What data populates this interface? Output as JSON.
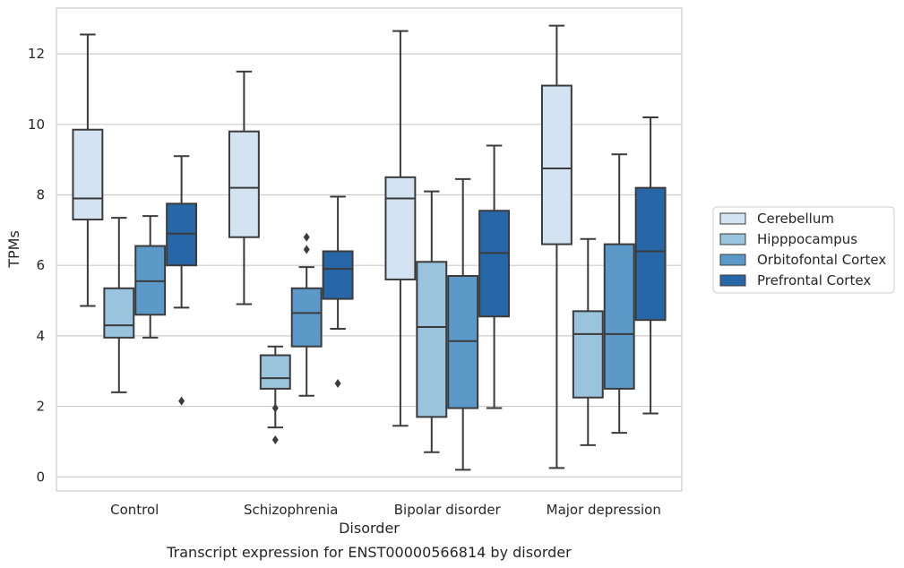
{
  "chart_data": {
    "type": "box",
    "title": "",
    "caption": "Transcript expression for ENST00000566814 by disorder",
    "xlabel": "Disorder",
    "ylabel": "TPMs",
    "ylim": [
      -0.4,
      13.3
    ],
    "yticks": [
      0,
      2,
      4,
      6,
      8,
      10,
      12
    ],
    "grid": "horizontal",
    "legend_position": "right",
    "categories": [
      "Control",
      "Schizophrenia",
      "Bipolar disorder",
      "Major depression"
    ],
    "series": [
      {
        "name": "Cerebellum",
        "color": "#d3e3f2",
        "boxes": [
          {
            "min": 4.85,
            "q1": 7.3,
            "median": 7.9,
            "q3": 9.85,
            "max": 12.55,
            "outliers": []
          },
          {
            "min": 4.9,
            "q1": 6.8,
            "median": 8.2,
            "q3": 9.8,
            "max": 11.5,
            "outliers": []
          },
          {
            "min": 1.45,
            "q1": 5.6,
            "median": 7.9,
            "q3": 8.5,
            "max": 12.65,
            "outliers": []
          },
          {
            "min": 0.25,
            "q1": 6.6,
            "median": 8.75,
            "q3": 11.1,
            "max": 12.8,
            "outliers": []
          }
        ]
      },
      {
        "name": "Hipppocampus",
        "color": "#9ac3de",
        "boxes": [
          {
            "min": 2.4,
            "q1": 3.95,
            "median": 4.3,
            "q3": 5.35,
            "max": 7.35,
            "outliers": []
          },
          {
            "min": 1.4,
            "q1": 2.5,
            "median": 2.8,
            "q3": 3.45,
            "max": 3.7,
            "outliers": [
              1.95,
              1.05
            ]
          },
          {
            "min": 0.7,
            "q1": 1.7,
            "median": 4.25,
            "q3": 6.1,
            "max": 8.1,
            "outliers": []
          },
          {
            "min": 0.9,
            "q1": 2.25,
            "median": 4.05,
            "q3": 4.7,
            "max": 6.75,
            "outliers": []
          }
        ]
      },
      {
        "name": "Orbitofontal Cortex",
        "color": "#5b9ac8",
        "boxes": [
          {
            "min": 3.95,
            "q1": 4.6,
            "median": 5.55,
            "q3": 6.55,
            "max": 7.4,
            "outliers": []
          },
          {
            "min": 2.3,
            "q1": 3.7,
            "median": 4.65,
            "q3": 5.35,
            "max": 5.95,
            "outliers": [
              6.8,
              6.45
            ]
          },
          {
            "min": 0.2,
            "q1": 1.95,
            "median": 3.85,
            "q3": 5.7,
            "max": 8.45,
            "outliers": []
          },
          {
            "min": 1.25,
            "q1": 2.5,
            "median": 4.05,
            "q3": 6.6,
            "max": 9.15,
            "outliers": []
          }
        ]
      },
      {
        "name": "Prefrontal Cortex",
        "color": "#2767a8",
        "boxes": [
          {
            "min": 4.8,
            "q1": 6.0,
            "median": 6.9,
            "q3": 7.75,
            "max": 9.1,
            "outliers": [
              2.15
            ]
          },
          {
            "min": 4.2,
            "q1": 5.05,
            "median": 5.9,
            "q3": 6.4,
            "max": 7.95,
            "outliers": [
              2.65
            ]
          },
          {
            "min": 1.95,
            "q1": 4.55,
            "median": 6.35,
            "q3": 7.55,
            "max": 9.4,
            "outliers": []
          },
          {
            "min": 1.8,
            "q1": 4.45,
            "median": 6.4,
            "q3": 8.2,
            "max": 10.2,
            "outliers": []
          }
        ]
      }
    ]
  }
}
